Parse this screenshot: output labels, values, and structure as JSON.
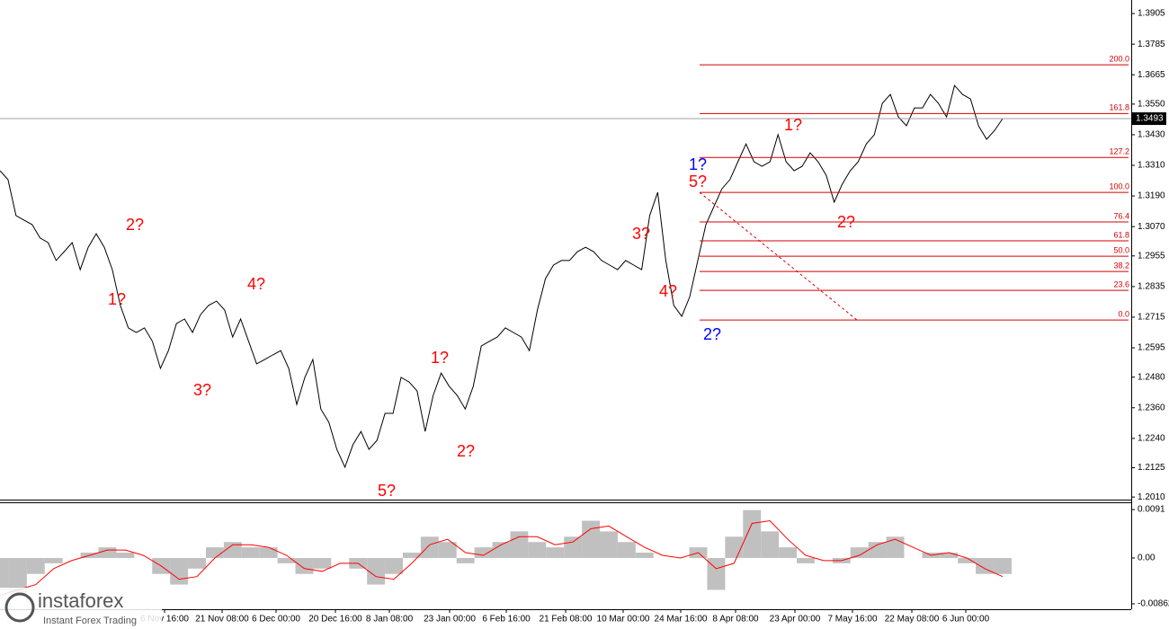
{
  "chart_data": [
    {
      "type": "line",
      "color": "#000000",
      "values": [
        1.3289,
        1.3254,
        1.3113,
        1.3095,
        1.3078,
        1.3025,
        1.3007,
        1.2937,
        1.2972,
        1.3007,
        1.2901,
        1.2989,
        1.3042,
        1.2989,
        1.2901,
        1.2761,
        1.2673,
        1.2655,
        1.2673,
        1.262,
        1.2514,
        1.2584,
        1.269,
        1.2708,
        1.2655,
        1.2725,
        1.2761,
        1.2778,
        1.2743,
        1.2637,
        1.2708,
        1.262,
        1.2532,
        1.2549,
        1.2567,
        1.2584,
        1.2514,
        1.2373,
        1.2479,
        1.2549,
        1.2355,
        1.2303,
        1.2197,
        1.2127,
        1.2215,
        1.2267,
        1.2197,
        1.2232,
        1.2338,
        1.2338,
        1.2479,
        1.2461,
        1.2426,
        1.2267,
        1.2408,
        1.2496,
        1.2444,
        1.2408,
        1.2355,
        1.2444,
        1.2602,
        1.262,
        1.2637,
        1.2673,
        1.2655,
        1.2637,
        1.2584,
        1.2743,
        1.2866,
        1.2919,
        1.2937,
        1.2937,
        1.2972,
        1.2989,
        1.2972,
        1.2937,
        1.2919,
        1.2901,
        1.2937,
        1.2919,
        1.2901,
        1.3113,
        1.3204,
        1.2937,
        1.2761,
        1.2718,
        1.2796,
        1.2937,
        1.3078,
        1.3148,
        1.3218,
        1.3254,
        1.3324,
        1.3394,
        1.3324,
        1.3306,
        1.3324,
        1.343,
        1.3324,
        1.3289,
        1.3306,
        1.3359,
        1.3324,
        1.3271,
        1.3166,
        1.3236,
        1.3289,
        1.3324,
        1.3394,
        1.343,
        1.3553,
        1.3588,
        1.35,
        1.3465,
        1.3535,
        1.3535,
        1.3588,
        1.3553,
        1.35,
        1.3623,
        1.3588,
        1.357,
        1.3465,
        1.3412,
        1.3447,
        1.3493
      ],
      "x_labels": [
        "6 Nov 16:00",
        "21 Nov 08:00",
        "6 Dec 00:00",
        "20 Dec 16:00",
        "8 Jan 08:00",
        "23 Jan 00:00",
        "6 Feb 16:00",
        "21 Feb 08:00",
        "10 Mar 00:00",
        "24 Mar 16:00",
        "8 Apr 08:00",
        "23 Apr 00:00",
        "7 May 16:00",
        "22 May 08:00",
        "6 Jun 00:00"
      ],
      "ylim": [
        1.2,
        1.3958
      ],
      "yticks": [
        1.3905,
        1.3785,
        1.3665,
        {
          "value": 1.355,
          "label": "1.3550"
        },
        {
          "value": 1.343,
          "label": "1.3430"
        },
        {
          "value": 1.331,
          "label": "1.3310"
        },
        {
          "value": 1.319,
          "label": "1.3190"
        },
        {
          "value": 1.307,
          "label": "1.3070"
        },
        1.2955,
        1.2835,
        1.2715,
        1.2595,
        {
          "value": 1.248,
          "label": "1.2480"
        },
        {
          "value": 1.236,
          "label": "1.2360"
        },
        {
          "value": 1.224,
          "label": "1.2240"
        },
        1.2125,
        {
          "value": 1.201,
          "label": "1.2010"
        }
      ],
      "last_price": 1.3493,
      "fib_color": "#d40000",
      "fib_levels": [
        "200.0",
        "161.8",
        "127.2",
        "100.0",
        "76.4",
        "61.8",
        "50.0",
        "38.2",
        "23.6",
        "0.0"
      ],
      "fib_prices": [
        1.3704,
        1.3513,
        1.3341,
        1.3204,
        1.3088,
        1.3014,
        1.2954,
        1.2894,
        1.282,
        1.2704
      ],
      "annotations": [
        {
          "text": "2?",
          "color": "#ff0000"
        },
        {
          "text": "1?",
          "color": "#ff0000"
        },
        {
          "text": "3?",
          "color": "#ff0000"
        },
        {
          "text": "4?",
          "color": "#ff0000"
        },
        {
          "text": "5?",
          "color": "#ff0000"
        },
        {
          "text": "1?",
          "color": "#ff0000"
        },
        {
          "text": "2?",
          "color": "#ff0000"
        },
        {
          "text": "3?",
          "color": "#ff0000"
        },
        {
          "text": "4?",
          "color": "#ff0000"
        },
        {
          "text": "1?",
          "color": "#0000ff"
        },
        {
          "text": "5?",
          "color": "#ff0000"
        },
        {
          "text": "2?",
          "color": "#0000ff"
        },
        {
          "text": "1?",
          "color": "#ff0000"
        },
        {
          "text": "2?",
          "color": "#ff0000"
        }
      ]
    },
    {
      "type": "bar",
      "color": "#c0c0c0",
      "signal_color": "#ff0000",
      "values": [
        -0.006,
        -0.007,
        -0.003,
        -0.001,
        0.0,
        0.001,
        0.002,
        0.001,
        0.0,
        -0.003,
        -0.005,
        -0.002,
        0.002,
        0.003,
        0.002,
        0.002,
        -0.001,
        -0.003,
        -0.002,
        0.0,
        -0.002,
        -0.005,
        -0.003,
        0.001,
        0.004,
        0.003,
        -0.001,
        0.002,
        0.003,
        0.005,
        0.003,
        0.002,
        0.004,
        0.007,
        0.005,
        0.003,
        0.001,
        0.0,
        0.0,
        0.002,
        -0.006,
        0.004,
        0.009,
        0.005,
        0.002,
        -0.001,
        0.0,
        -0.001,
        0.002,
        0.003,
        0.004,
        0.0,
        0.001,
        0.001,
        -0.001,
        -0.003,
        -0.003
      ],
      "signal": [
        -0.007,
        -0.006,
        -0.005,
        -0.002,
        -0.0005,
        0.0005,
        0.0015,
        0.0015,
        0.0005,
        -0.0015,
        -0.004,
        -0.0035,
        0.0,
        0.0025,
        0.0025,
        0.002,
        0.0005,
        -0.002,
        -0.0025,
        -0.001,
        -0.001,
        -0.0035,
        -0.004,
        -0.001,
        0.0025,
        0.0035,
        0.001,
        0.0005,
        0.0025,
        0.004,
        0.004,
        0.0025,
        0.003,
        0.0055,
        0.006,
        0.004,
        0.002,
        0.0005,
        0.0,
        0.001,
        -0.002,
        -0.001,
        0.0065,
        0.007,
        0.0035,
        0.0005,
        -0.0005,
        -0.0005,
        0.0005,
        0.0025,
        0.0035,
        0.002,
        0.0005,
        0.001,
        0.0,
        -0.002,
        -0.0035
      ],
      "ylim": [
        -0.0093,
        0.0103
      ],
      "yticks": [
        0.0091,
        {
          "value": 0,
          "label": "0.00"
        },
        -0.00862
      ]
    }
  ],
  "watermark": {
    "brand": "instaforex",
    "tagline": "Instant Forex Trading"
  }
}
